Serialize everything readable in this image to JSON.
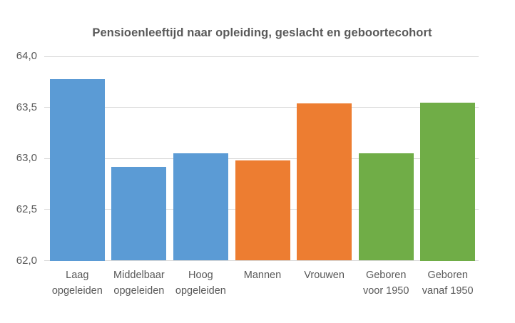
{
  "chart_data": {
    "type": "bar",
    "title": "Pensioenleeftijd naar opleiding, geslacht en geboortecohort",
    "categories": [
      "Laag opgeleiden",
      "Middelbaar opgeleiden",
      "Hoog opgeleiden",
      "Mannen",
      "Vrouwen",
      "Geboren voor 1950",
      "Geboren vanaf 1950"
    ],
    "category_lines": [
      [
        "Laag",
        "opgeleiden"
      ],
      [
        "Middelbaar",
        "opgeleiden"
      ],
      [
        "Hoog",
        "opgeleiden"
      ],
      [
        "Mannen"
      ],
      [
        "Vrouwen"
      ],
      [
        "Geboren",
        "voor 1950"
      ],
      [
        "Geboren",
        "vanaf 1950"
      ]
    ],
    "values": [
      63.78,
      62.92,
      63.05,
      62.98,
      63.54,
      63.05,
      63.55
    ],
    "bar_colors": [
      "#5B9BD5",
      "#5B9BD5",
      "#5B9BD5",
      "#ED7D31",
      "#ED7D31",
      "#70AD47",
      "#70AD47"
    ],
    "series_groups": [
      {
        "name": "opleiding",
        "color": "#5B9BD5"
      },
      {
        "name": "geslacht",
        "color": "#ED7D31"
      },
      {
        "name": "geboortecohort",
        "color": "#70AD47"
      }
    ],
    "xlabel": "",
    "ylabel": "",
    "ylim": [
      62.0,
      64.0
    ],
    "yticks": [
      62.0,
      62.5,
      63.0,
      63.5,
      64.0
    ],
    "ytick_labels": [
      "62,0",
      "62,5",
      "63,0",
      "63,5",
      "64,0"
    ],
    "grid": true,
    "legend": false,
    "text_color": "#595959",
    "gridline_color": "#D9D9D9",
    "background_color": "#FFFFFF"
  }
}
